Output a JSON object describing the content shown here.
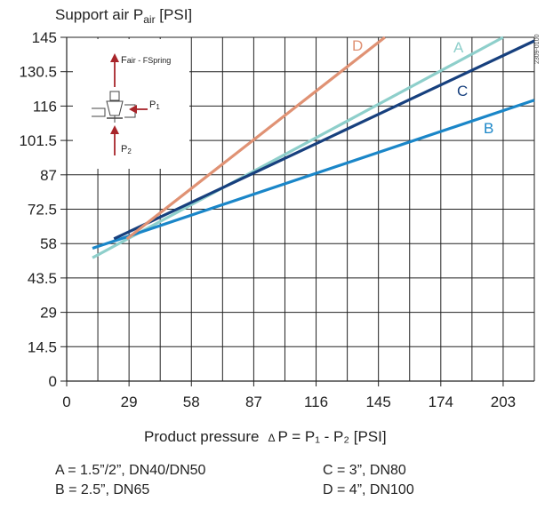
{
  "chart_data": {
    "type": "line",
    "title_main": "Support air P",
    "title_sub": "air",
    "title_unit": " [PSI]",
    "xlabel_main": "Product pressure",
    "xlabel_delta": "Δ",
    "xlabel_formula": "P = P₁ - P₂ [PSI]",
    "x_ticks": [
      "0",
      "29",
      "58",
      "87",
      "116",
      "145",
      "174",
      "203"
    ],
    "y_ticks": [
      "0",
      "14.5",
      "29",
      "43.5",
      "58",
      "72.5",
      "87",
      "101.5",
      "116",
      "130.5",
      "145"
    ],
    "xlim": [
      0,
      217.5
    ],
    "ylim": [
      0,
      145
    ],
    "grid": true,
    "series": [
      {
        "name": "A",
        "color": "#8ecfcb",
        "x": [
          12,
          203
        ],
        "y": [
          52,
          145
        ]
      },
      {
        "name": "B",
        "color": "#1a86c8",
        "x": [
          12,
          217.5
        ],
        "y": [
          56,
          118.5
        ]
      },
      {
        "name": "C",
        "color": "#17407e",
        "x": [
          22,
          217.5
        ],
        "y": [
          60,
          143.5
        ]
      },
      {
        "name": "D",
        "color": "#e09274",
        "x": [
          28,
          148
        ],
        "y": [
          60,
          145
        ]
      }
    ],
    "legend": [
      {
        "text": "A = 1.5”/2”, DN40/DN50"
      },
      {
        "text": "B = 2.5”, DN65"
      },
      {
        "text": "C = 3”, DN80"
      },
      {
        "text": "D = 4”, DN100"
      }
    ],
    "inset": {
      "force_label": "F",
      "force_sub": "air - FSpring",
      "p1_label": "P",
      "p1_sub": "1",
      "p2_label": "P",
      "p2_sub": "2",
      "arrow_color": "#a8252a"
    },
    "side_code": "2309-0100"
  }
}
